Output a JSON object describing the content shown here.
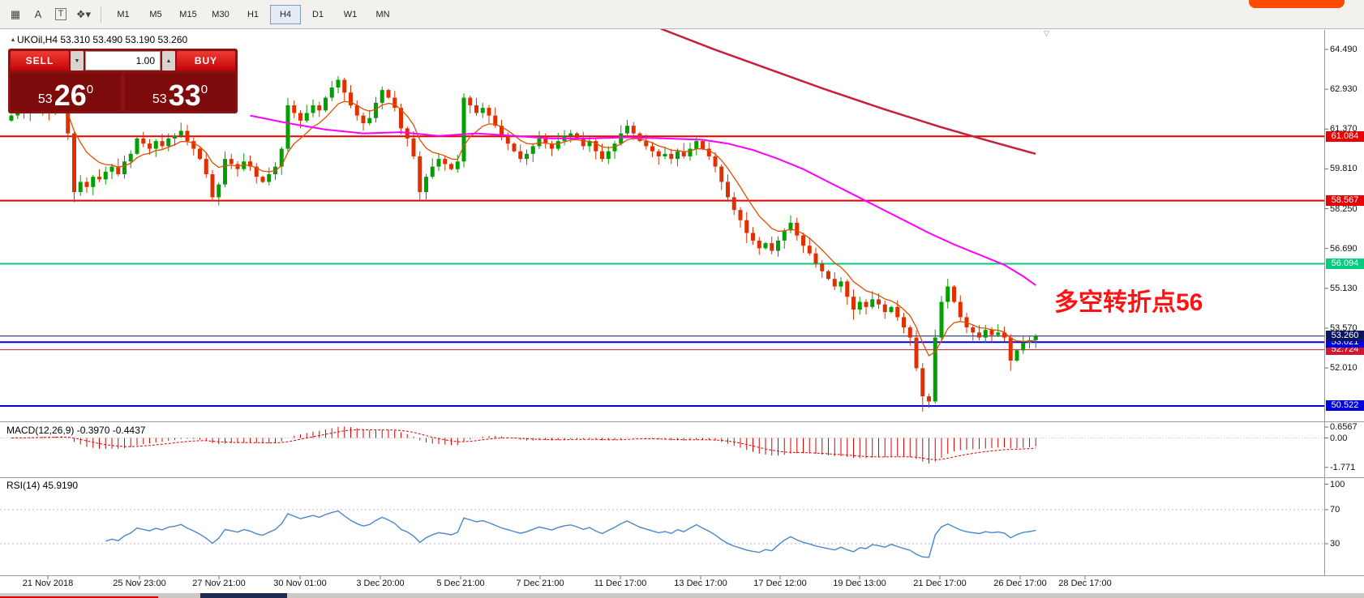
{
  "toolbar": {
    "tools": [
      {
        "name": "grid-tool-icon",
        "glyph": "▦"
      },
      {
        "name": "text-label-tool-icon",
        "glyph": "A"
      },
      {
        "name": "text-box-tool-icon",
        "glyph": "T",
        "boxed": true
      },
      {
        "name": "shapes-tool-icon",
        "glyph": "❖▾"
      }
    ],
    "timeframes": [
      "M1",
      "M5",
      "M15",
      "M30",
      "H1",
      "H4",
      "D1",
      "W1",
      "MN"
    ],
    "active_timeframe": "H4"
  },
  "chart": {
    "symbol_header": "UKOil,H4 53.310 53.490 53.190 53.260",
    "symbol_marker_icon": "▴",
    "shift_marker_icon": "▽",
    "annotation": "多空转折点56",
    "trade_panel": {
      "sell_label": "SELL",
      "buy_label": "BUY",
      "volume": "1.00",
      "volume_down_icon": "▼",
      "volume_up_icon": "▲",
      "sell_price_small": "53",
      "sell_price_big": "26",
      "sell_price_sup": "0",
      "buy_price_small": "53",
      "buy_price_big": "33",
      "buy_price_sup": "0"
    },
    "y_axis_ticks": [
      "64.490",
      "62.930",
      "61.370",
      "59.810",
      "58.250",
      "56.690",
      "55.130",
      "53.570",
      "52.010"
    ],
    "levels": [
      {
        "price": 61.084,
        "label": "61.084",
        "color": "#e60000",
        "width": 2
      },
      {
        "price": 58.567,
        "label": "58.567",
        "color": "#e60000",
        "width": 2
      },
      {
        "price": 56.094,
        "label": "56.094",
        "color": "#00cd7d",
        "width": 2
      },
      {
        "price": 53.26,
        "label": "53.260",
        "color": "#0b1660",
        "width": 1
      },
      {
        "price": 53.021,
        "label": "53.021",
        "color": "#0000e0",
        "width": 2
      },
      {
        "price": 52.724,
        "label": "52.724",
        "color": "#ce1a30",
        "width": 1
      },
      {
        "price": 50.522,
        "label": "50.522",
        "color": "#0000e0",
        "width": 2
      }
    ],
    "candles": {
      "up_color": "#00a000",
      "down_color": "#e03000",
      "first_open": 61.7,
      "closes": [
        61.9,
        62.1,
        62.0,
        62.2,
        62.1,
        62.3,
        62.0,
        62.35,
        62.4,
        61.2,
        58.9,
        59.3,
        59.1,
        59.5,
        59.4,
        59.7,
        59.9,
        59.6,
        60.1,
        60.4,
        61.0,
        60.8,
        60.6,
        60.9,
        60.7,
        61.0,
        61.1,
        61.3,
        60.9,
        60.6,
        60.2,
        59.6,
        58.7,
        59.2,
        60.2,
        60.0,
        59.8,
        60.1,
        59.9,
        59.5,
        59.3,
        59.6,
        59.9,
        60.6,
        62.3,
        62.0,
        61.7,
        62.0,
        62.3,
        62.1,
        62.6,
        63.0,
        63.3,
        62.8,
        62.3,
        61.9,
        61.6,
        61.8,
        62.4,
        62.9,
        62.6,
        62.2,
        61.4,
        61.0,
        60.3,
        58.9,
        59.5,
        59.9,
        60.2,
        60.0,
        59.8,
        60.1,
        62.6,
        62.3,
        62.0,
        62.2,
        61.9,
        61.5,
        61.1,
        60.8,
        60.5,
        60.2,
        60.4,
        60.7,
        61.0,
        60.8,
        60.6,
        60.9,
        61.1,
        61.2,
        61.0,
        60.7,
        60.9,
        60.5,
        60.2,
        60.5,
        60.8,
        61.2,
        61.5,
        61.2,
        60.9,
        60.7,
        60.5,
        60.3,
        60.4,
        60.2,
        60.5,
        60.3,
        60.6,
        60.9,
        60.6,
        60.3,
        59.9,
        59.3,
        58.7,
        58.2,
        57.8,
        57.3,
        57.0,
        56.7,
        56.9,
        56.6,
        57.0,
        57.4,
        57.7,
        57.2,
        56.8,
        56.5,
        56.1,
        55.8,
        55.5,
        55.2,
        55.4,
        54.8,
        54.3,
        54.6,
        54.4,
        54.7,
        54.5,
        54.2,
        54.4,
        54.0,
        53.6,
        53.2,
        52.0,
        50.9,
        50.7,
        53.2,
        54.6,
        55.2,
        54.6,
        54.0,
        53.6,
        53.4,
        53.2,
        53.5,
        53.3,
        53.4,
        53.2,
        52.3,
        52.7,
        53.0,
        53.1,
        53.26
      ],
      "wick_overrides": {
        "10": {
          "low": 58.5
        },
        "32": {
          "low": 58.55
        },
        "52": {
          "high": 63.45
        },
        "65": {
          "low": 58.6
        },
        "117": {
          "low": 56.9
        },
        "134": {
          "low": 53.9
        },
        "145": {
          "low": 50.3
        },
        "146": {
          "low": 50.45
        },
        "149": {
          "high": 55.5
        },
        "159": {
          "low": 51.9
        }
      }
    },
    "overlays": {
      "fast_ma_color": "#e05000",
      "magenta_ma": {
        "color": "#ff00ff",
        "points": [
          [
            38,
            61.9
          ],
          [
            44,
            61.6
          ],
          [
            50,
            61.35
          ],
          [
            56,
            61.2
          ],
          [
            62,
            61.25
          ],
          [
            68,
            61.1
          ],
          [
            74,
            61.2
          ],
          [
            80,
            61.1
          ],
          [
            86,
            61.0
          ],
          [
            92,
            61.0
          ],
          [
            98,
            61.05
          ],
          [
            104,
            61.0
          ],
          [
            110,
            60.95
          ],
          [
            114,
            60.8
          ],
          [
            118,
            60.55
          ],
          [
            122,
            60.2
          ],
          [
            126,
            59.8
          ],
          [
            130,
            59.3
          ],
          [
            134,
            58.8
          ],
          [
            138,
            58.3
          ],
          [
            142,
            57.8
          ],
          [
            146,
            57.3
          ],
          [
            150,
            56.85
          ],
          [
            154,
            56.45
          ],
          [
            158,
            56.05
          ],
          [
            161,
            55.6
          ],
          [
            163,
            55.25
          ]
        ]
      },
      "slow_ma": {
        "color": "#c81e3c",
        "points": [
          [
            815,
            65.3
          ],
          [
            880,
            64.5
          ],
          [
            950,
            63.7
          ],
          [
            1020,
            62.9
          ],
          [
            1090,
            62.15
          ],
          [
            1160,
            61.45
          ],
          [
            1220,
            60.9
          ],
          [
            1277,
            60.4
          ]
        ]
      }
    }
  },
  "macd": {
    "label": "MACD(12,26,9) -0.3970 -0.4437",
    "axis_labels": [
      "0.6567",
      "0.00",
      "-1.771"
    ],
    "color": "#e00000"
  },
  "rsi": {
    "label": "RSI(14) 45.9190",
    "axis_labels": [
      "100",
      "70",
      "30"
    ],
    "color": "#4a86c8"
  },
  "time_axis": {
    "labels": [
      [
        "21 Nov 2018",
        59
      ],
      [
        "25 Nov 23:00",
        172
      ],
      [
        "27 Nov 21:00",
        270
      ],
      [
        "30 Nov 01:00",
        370
      ],
      [
        "3 Dec 20:00",
        469
      ],
      [
        "5 Dec 21:00",
        568
      ],
      [
        "7 Dec 21:00",
        666
      ],
      [
        "11 Dec 17:00",
        765
      ],
      [
        "13 Dec 17:00",
        864
      ],
      [
        "17 Dec 12:00",
        962
      ],
      [
        "19 Dec 13:00",
        1060
      ],
      [
        "21 Dec 17:00",
        1159
      ],
      [
        "26 Dec 17:00",
        1258
      ],
      [
        "28 Dec 17:00",
        1338
      ]
    ]
  }
}
